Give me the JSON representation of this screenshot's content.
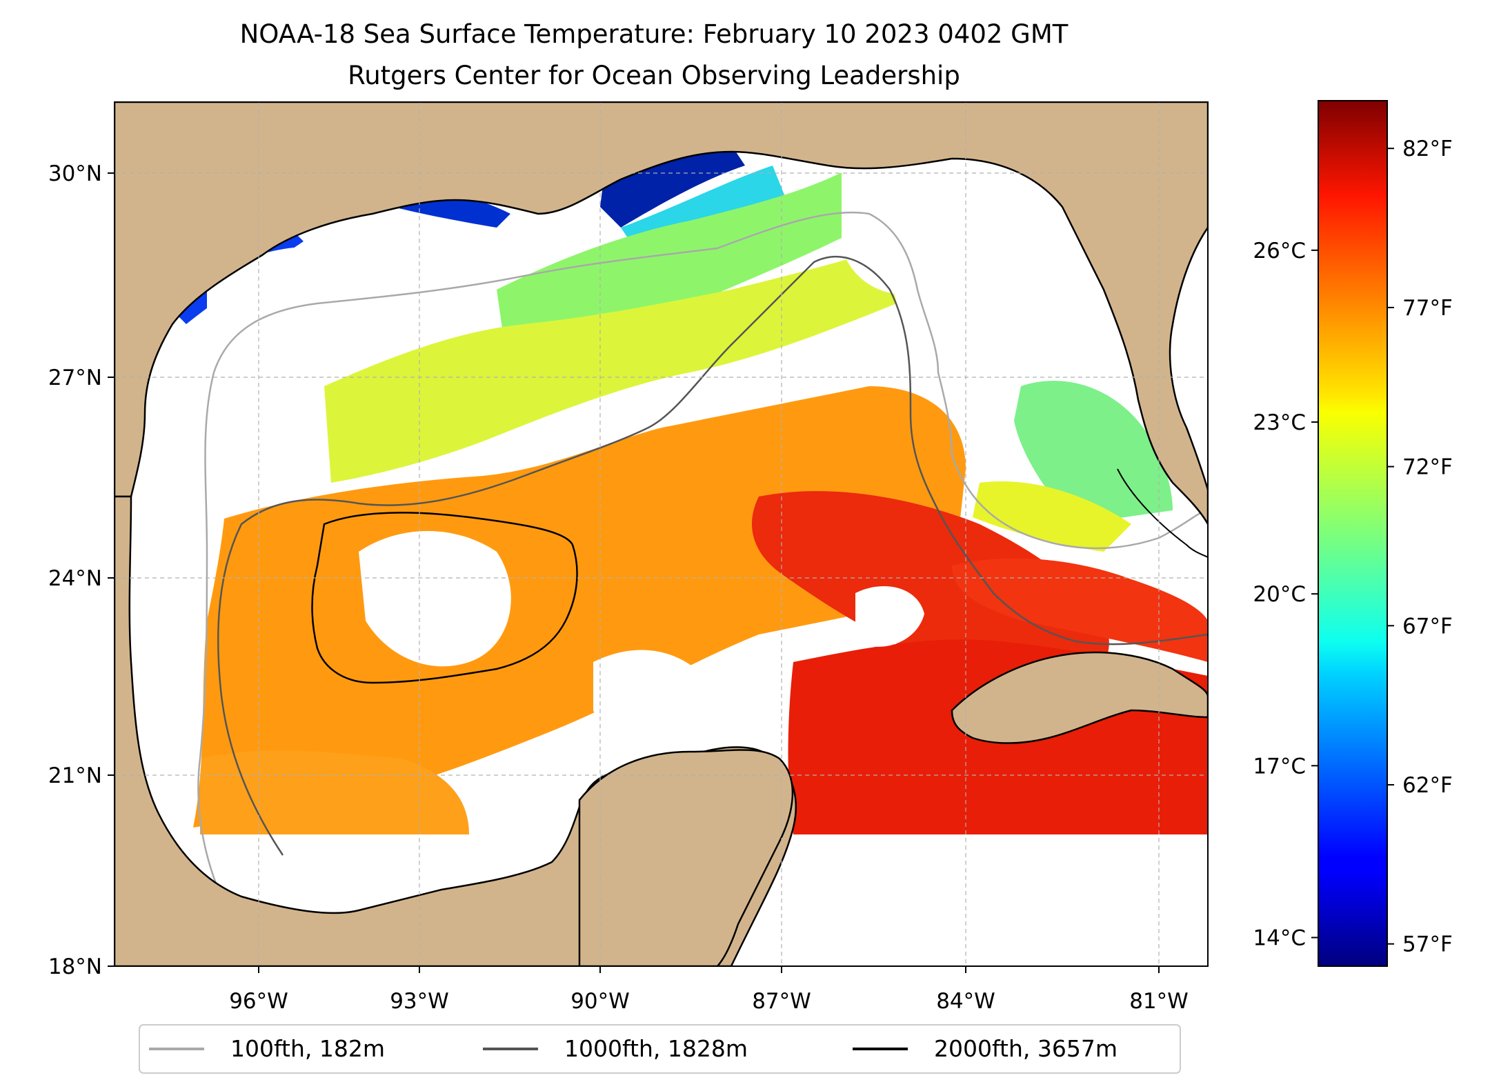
{
  "title": "NOAA-18 Sea Surface Temperature: February 10 2023 0402 GMT",
  "subtitle": "Rutgers Center for Ocean Observing Leadership",
  "map": {
    "lat_ticks": [
      "30°N",
      "27°N",
      "24°N",
      "21°N",
      "18°N"
    ],
    "lon_ticks": [
      "96°W",
      "93°W",
      "90°W",
      "87°W",
      "84°W",
      "81°W"
    ],
    "lat_range": [
      18,
      31.1
    ],
    "lon_range": [
      -98.3,
      -80.5
    ],
    "land_color": "#d2b48c",
    "grid": true
  },
  "legend": {
    "placement": "bottom-center",
    "items": [
      {
        "label": "100fth, 182m",
        "color": "#a9a9a9"
      },
      {
        "label": "1000fth, 1828m",
        "color": "#555555"
      },
      {
        "label": "2000fth, 3657m",
        "color": "#000000"
      }
    ]
  },
  "colorbar": {
    "colormap": "jet",
    "celsius_labels": [
      "26°C",
      "23°C",
      "20°C",
      "17°C",
      "14°C"
    ],
    "fahrenheit_labels": [
      "82°F",
      "77°F",
      "72°F",
      "67°F",
      "62°F",
      "57°F"
    ],
    "celsius_values": [
      26,
      23,
      20,
      17,
      14
    ],
    "fahrenheit_values": [
      82,
      77,
      72,
      67,
      62,
      57
    ],
    "range_f": [
      56.3,
      83.5
    ]
  }
}
